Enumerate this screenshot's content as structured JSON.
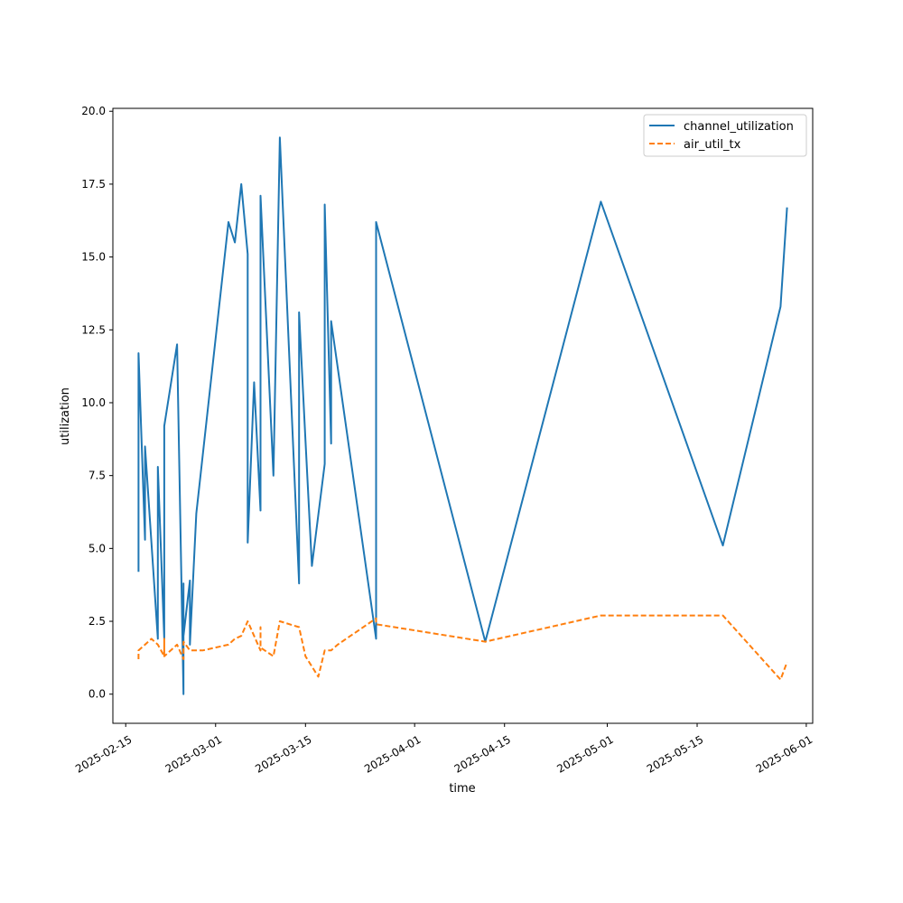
{
  "chart_data": {
    "type": "line",
    "title": "",
    "xlabel": "time",
    "ylabel": "utilization",
    "x_type": "date",
    "xlim": [
      "2025-02-13",
      "2025-06-02"
    ],
    "ylim": [
      -1.0,
      20.1
    ],
    "x_ticks": [
      "2025-02-15",
      "2025-03-01",
      "2025-03-15",
      "2025-04-01",
      "2025-04-15",
      "2025-05-01",
      "2025-05-15",
      "2025-06-01"
    ],
    "y_ticks": [
      "0.0",
      "2.5",
      "5.0",
      "7.5",
      "10.0",
      "12.5",
      "15.0",
      "17.5",
      "20.0"
    ],
    "grid": false,
    "legend_position": "top-right",
    "colors": {
      "channel_utilization": "#1f77b4",
      "air_util_tx": "#ff7f0e"
    },
    "series": [
      {
        "name": "channel_utilization",
        "style": "solid",
        "points": [
          [
            "2025-02-17",
            4.2
          ],
          [
            "2025-02-17",
            11.7
          ],
          [
            "2025-02-18",
            5.3
          ],
          [
            "2025-02-18",
            8.5
          ],
          [
            "2025-02-19",
            5.2
          ],
          [
            "2025-02-20",
            1.9
          ],
          [
            "2025-02-20",
            7.8
          ],
          [
            "2025-02-21",
            1.9
          ],
          [
            "2025-02-21",
            9.2
          ],
          [
            "2025-02-23",
            12.0
          ],
          [
            "2025-02-24",
            0.0
          ],
          [
            "2025-02-24",
            3.8
          ],
          [
            "2025-02-24",
            2.0
          ],
          [
            "2025-02-25",
            3.9
          ],
          [
            "2025-02-25",
            1.7
          ],
          [
            "2025-02-26",
            6.2
          ],
          [
            "2025-03-03",
            16.2
          ],
          [
            "2025-03-04",
            15.5
          ],
          [
            "2025-03-05",
            17.5
          ],
          [
            "2025-03-06",
            15.1
          ],
          [
            "2025-03-06",
            5.2
          ],
          [
            "2025-03-07",
            10.7
          ],
          [
            "2025-03-08",
            6.3
          ],
          [
            "2025-03-08",
            16.0
          ],
          [
            "2025-03-08",
            17.1
          ],
          [
            "2025-03-10",
            7.5
          ],
          [
            "2025-03-11",
            19.1
          ],
          [
            "2025-03-14",
            3.8
          ],
          [
            "2025-03-14",
            13.1
          ],
          [
            "2025-03-15",
            8.7
          ],
          [
            "2025-03-16",
            4.4
          ],
          [
            "2025-03-18",
            7.9
          ],
          [
            "2025-03-18",
            16.8
          ],
          [
            "2025-03-19",
            8.6
          ],
          [
            "2025-03-19",
            12.8
          ],
          [
            "2025-03-26",
            1.9
          ],
          [
            "2025-03-26",
            16.2
          ],
          [
            "2025-04-12",
            1.8
          ],
          [
            "2025-04-30",
            16.9
          ],
          [
            "2025-05-19",
            5.1
          ],
          [
            "2025-05-28",
            13.3
          ],
          [
            "2025-05-29",
            16.7
          ]
        ]
      },
      {
        "name": "air_util_tx",
        "style": "dashed",
        "points": [
          [
            "2025-02-17",
            1.2
          ],
          [
            "2025-02-17",
            1.5
          ],
          [
            "2025-02-18",
            1.7
          ],
          [
            "2025-02-19",
            1.9
          ],
          [
            "2025-02-20",
            1.7
          ],
          [
            "2025-02-21",
            1.3
          ],
          [
            "2025-02-21",
            1.9
          ],
          [
            "2025-02-21",
            1.3
          ],
          [
            "2025-02-23",
            1.7
          ],
          [
            "2025-02-24",
            1.2
          ],
          [
            "2025-02-24",
            1.8
          ],
          [
            "2025-02-25",
            1.5
          ],
          [
            "2025-02-27",
            1.5
          ],
          [
            "2025-03-03",
            1.7
          ],
          [
            "2025-03-04",
            1.9
          ],
          [
            "2025-03-05",
            2.0
          ],
          [
            "2025-03-06",
            2.5
          ],
          [
            "2025-03-07",
            2.0
          ],
          [
            "2025-03-08",
            1.5
          ],
          [
            "2025-03-08",
            2.3
          ],
          [
            "2025-03-08",
            1.6
          ],
          [
            "2025-03-10",
            1.3
          ],
          [
            "2025-03-11",
            2.5
          ],
          [
            "2025-03-14",
            2.3
          ],
          [
            "2025-03-15",
            1.3
          ],
          [
            "2025-03-17",
            0.6
          ],
          [
            "2025-03-18",
            1.5
          ],
          [
            "2025-03-19",
            1.5
          ],
          [
            "2025-03-20",
            1.7
          ],
          [
            "2025-03-26",
            2.6
          ],
          [
            "2025-03-26",
            2.4
          ],
          [
            "2025-04-12",
            1.8
          ],
          [
            "2025-04-30",
            2.7
          ],
          [
            "2025-05-19",
            2.7
          ],
          [
            "2025-05-28",
            0.5
          ],
          [
            "2025-05-29",
            1.1
          ]
        ]
      }
    ]
  }
}
